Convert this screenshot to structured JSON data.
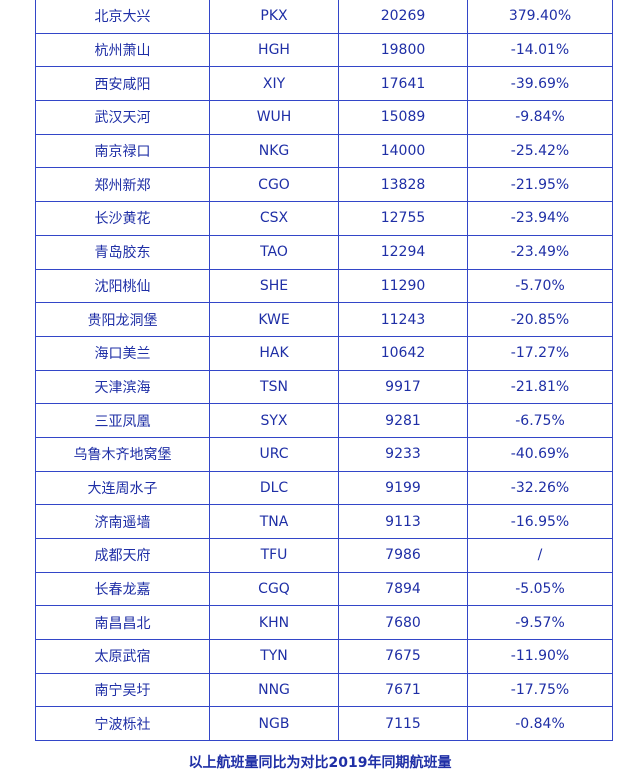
{
  "table": {
    "rows": [
      {
        "airport": "北京大兴",
        "code": "PKX",
        "flights": "20269",
        "change": "379.40%"
      },
      {
        "airport": "杭州萧山",
        "code": "HGH",
        "flights": "19800",
        "change": "-14.01%"
      },
      {
        "airport": "西安咸阳",
        "code": "XIY",
        "flights": "17641",
        "change": "-39.69%"
      },
      {
        "airport": "武汉天河",
        "code": "WUH",
        "flights": "15089",
        "change": "-9.84%"
      },
      {
        "airport": "南京禄口",
        "code": "NKG",
        "flights": "14000",
        "change": "-25.42%"
      },
      {
        "airport": "郑州新郑",
        "code": "CGO",
        "flights": "13828",
        "change": "-21.95%"
      },
      {
        "airport": "长沙黄花",
        "code": "CSX",
        "flights": "12755",
        "change": "-23.94%"
      },
      {
        "airport": "青岛胶东",
        "code": "TAO",
        "flights": "12294",
        "change": "-23.49%"
      },
      {
        "airport": "沈阳桃仙",
        "code": "SHE",
        "flights": "11290",
        "change": "-5.70%"
      },
      {
        "airport": "贵阳龙洞堡",
        "code": "KWE",
        "flights": "11243",
        "change": "-20.85%"
      },
      {
        "airport": "海口美兰",
        "code": "HAK",
        "flights": "10642",
        "change": "-17.27%"
      },
      {
        "airport": "天津滨海",
        "code": "TSN",
        "flights": "9917",
        "change": "-21.81%"
      },
      {
        "airport": "三亚凤凰",
        "code": "SYX",
        "flights": "9281",
        "change": "-6.75%"
      },
      {
        "airport": "乌鲁木齐地窝堡",
        "code": "URC",
        "flights": "9233",
        "change": "-40.69%"
      },
      {
        "airport": "大连周水子",
        "code": "DLC",
        "flights": "9199",
        "change": "-32.26%"
      },
      {
        "airport": "济南遥墙",
        "code": "TNA",
        "flights": "9113",
        "change": "-16.95%"
      },
      {
        "airport": "成都天府",
        "code": "TFU",
        "flights": "7986",
        "change": "/"
      },
      {
        "airport": "长春龙嘉",
        "code": "CGQ",
        "flights": "7894",
        "change": "-5.05%"
      },
      {
        "airport": "南昌昌北",
        "code": "KHN",
        "flights": "7680",
        "change": "-9.57%"
      },
      {
        "airport": "太原武宿",
        "code": "TYN",
        "flights": "7675",
        "change": "-11.90%"
      },
      {
        "airport": "南宁吴圩",
        "code": "NNG",
        "flights": "7671",
        "change": "-17.75%"
      },
      {
        "airport": "宁波栎社",
        "code": "NGB",
        "flights": "7115",
        "change": "-0.84%"
      }
    ]
  },
  "footnote": "以上航班量同比为对比2019年同期航班量",
  "colors": {
    "text": "#1f2fa6",
    "border": "#3346c8"
  }
}
